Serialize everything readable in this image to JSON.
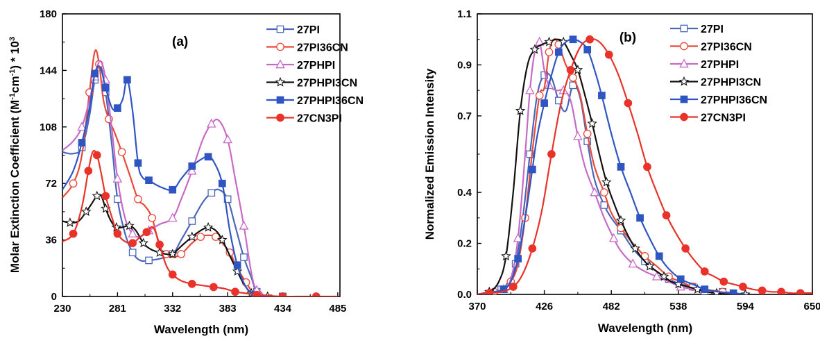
{
  "chart_data": [
    {
      "type": "line",
      "panel_label": "(a)",
      "xlabel": "Wavelength (nm)",
      "ylabel": "Molar Extinction Coefficient (M-1cm-1) * 103",
      "ylabel_parts": [
        "Molar Extinction Coefficient (M",
        "-1",
        "cm",
        "-1",
        ") * 10",
        "3"
      ],
      "xlim": [
        230,
        487
      ],
      "ylim": [
        0,
        180
      ],
      "xticks": [
        230,
        281,
        332,
        383,
        434,
        485
      ],
      "yticks": [
        0,
        36,
        72,
        108,
        144,
        180
      ],
      "legend_position": "top-right",
      "series": [
        {
          "name": "27PI",
          "color": "#4a66b8",
          "marker": "square-open",
          "x": [
            230,
            240,
            248,
            255,
            260,
            265,
            270,
            276,
            281,
            288,
            295,
            302,
            310,
            320,
            332,
            340,
            350,
            360,
            368,
            375,
            383,
            390,
            398,
            405,
            410,
            420,
            434
          ],
          "y": [
            92,
            91,
            95,
            115,
            138,
            147,
            130,
            95,
            62,
            40,
            28,
            23,
            23,
            24,
            27,
            36,
            48,
            60,
            66,
            68,
            62,
            45,
            25,
            12,
            3,
            0,
            0
          ]
        },
        {
          "name": "27PI36CN",
          "color": "#e84a3a",
          "marker": "circle-open",
          "x": [
            230,
            240,
            248,
            255,
            260,
            264,
            268,
            273,
            278,
            285,
            292,
            300,
            306,
            313,
            320,
            326,
            332,
            340,
            350,
            358,
            365,
            372,
            378,
            385,
            392,
            400,
            406,
            412,
            420
          ],
          "y": [
            63,
            72,
            90,
            130,
            156,
            148,
            125,
            113,
            105,
            92,
            78,
            62,
            58,
            50,
            32,
            27,
            25,
            27,
            34,
            38,
            39,
            38,
            34,
            28,
            18,
            9,
            3,
            1,
            0
          ]
        },
        {
          "name": "27PHPI",
          "color": "#c76ac7",
          "marker": "triangle-open",
          "x": [
            230,
            240,
            248,
            255,
            260,
            265,
            270,
            276,
            281,
            288,
            295,
            302,
            310,
            320,
            332,
            340,
            350,
            360,
            368,
            375,
            383,
            390,
            398,
            405,
            410,
            420
          ],
          "y": [
            93,
            99,
            108,
            125,
            140,
            150,
            138,
            105,
            75,
            50,
            40,
            38,
            42,
            46,
            50,
            62,
            80,
            100,
            110,
            112,
            100,
            75,
            45,
            15,
            4,
            0
          ]
        },
        {
          "name": "27PHPI3CN",
          "color": "#111111",
          "marker": "star-open",
          "x": [
            230,
            237,
            245,
            252,
            257,
            262,
            266,
            270,
            275,
            280,
            285,
            292,
            298,
            305,
            312,
            320,
            326,
            332,
            340,
            350,
            358,
            365,
            372,
            378,
            385,
            392,
            398,
            405,
            410,
            420
          ],
          "y": [
            48,
            47,
            48,
            54,
            59,
            64,
            64,
            56,
            48,
            44,
            44,
            45,
            42,
            34,
            30,
            28,
            27,
            27,
            32,
            38,
            42,
            44,
            42,
            36,
            26,
            16,
            8,
            2,
            0.5,
            0
          ]
        },
        {
          "name": "27PHPI36CN",
          "color": "#2e55c2",
          "marker": "square-filled",
          "x": [
            230,
            240,
            248,
            255,
            260,
            265,
            270,
            276,
            281,
            286,
            290,
            295,
            300,
            304,
            310,
            320,
            332,
            340,
            350,
            360,
            365,
            370,
            378,
            385,
            392,
            400,
            408,
            420,
            434
          ],
          "y": [
            68,
            80,
            98,
            120,
            142,
            146,
            133,
            120,
            120,
            126,
            138,
            118,
            85,
            76,
            74,
            70,
            68,
            75,
            83,
            88,
            89,
            86,
            72,
            42,
            20,
            6,
            1,
            0,
            0
          ]
        },
        {
          "name": "27CN3PI",
          "color": "#e8322a",
          "marker": "circle-filled",
          "x": [
            230,
            240,
            248,
            254,
            258,
            262,
            266,
            270,
            276,
            281,
            288,
            295,
            302,
            308,
            314,
            320,
            326,
            332,
            340,
            350,
            360,
            370,
            380,
            390,
            400,
            410,
            420,
            434,
            448,
            465,
            485
          ],
          "y": [
            35,
            40,
            57,
            80,
            92,
            90,
            78,
            64,
            50,
            40,
            35,
            34,
            38,
            41,
            44,
            33,
            20,
            14,
            10,
            8,
            7,
            6,
            5,
            3,
            2,
            1,
            0.5,
            0,
            0,
            0,
            0
          ]
        }
      ]
    },
    {
      "type": "line",
      "panel_label": "(b)",
      "xlabel": "Wavelength (nm)",
      "ylabel": "Normalized Emission Intensity",
      "xlim": [
        370,
        650
      ],
      "ylim": [
        0.0,
        1.1
      ],
      "xticks": [
        370,
        426,
        482,
        538,
        594,
        650
      ],
      "yticks": [
        0.0,
        0.2,
        0.4,
        0.7,
        0.9,
        1.1
      ],
      "legend_position": "top-right",
      "series": [
        {
          "name": "27PI",
          "color": "#4a66b8",
          "marker": "square-open",
          "x": [
            370,
            380,
            390,
            396,
            402,
            408,
            414,
            420,
            426,
            432,
            438,
            444,
            450,
            456,
            462,
            468,
            476,
            482,
            490,
            500,
            510,
            520,
            530,
            540,
            550,
            560,
            575,
            594
          ],
          "y": [
            0,
            0.01,
            0.02,
            0.05,
            0.12,
            0.3,
            0.55,
            0.78,
            0.86,
            0.85,
            0.76,
            0.72,
            0.82,
            0.77,
            0.6,
            0.45,
            0.35,
            0.3,
            0.25,
            0.18,
            0.13,
            0.09,
            0.06,
            0.04,
            0.03,
            0.02,
            0.01,
            0
          ]
        },
        {
          "name": "27PI36CN",
          "color": "#e84a3a",
          "marker": "circle-open",
          "x": [
            370,
            384,
            392,
            398,
            404,
            410,
            416,
            422,
            426,
            430,
            434,
            438,
            444,
            450,
            456,
            462,
            468,
            476,
            482,
            490,
            500,
            510,
            520,
            530,
            540,
            550,
            560,
            575,
            594
          ],
          "y": [
            0,
            0.01,
            0.02,
            0.05,
            0.12,
            0.3,
            0.56,
            0.78,
            0.81,
            0.95,
            1.0,
            0.98,
            0.9,
            0.85,
            0.78,
            0.63,
            0.5,
            0.4,
            0.32,
            0.26,
            0.2,
            0.15,
            0.11,
            0.07,
            0.05,
            0.03,
            0.02,
            0.01,
            0
          ]
        },
        {
          "name": "27PHPI",
          "color": "#c76ac7",
          "marker": "triangle-open",
          "x": [
            370,
            384,
            392,
            398,
            404,
            410,
            414,
            418,
            422,
            426,
            430,
            436,
            442,
            448,
            454,
            460,
            468,
            476,
            484,
            490,
            500,
            510,
            520,
            530,
            540,
            550,
            560,
            575,
            594
          ],
          "y": [
            0,
            0.01,
            0.02,
            0.06,
            0.22,
            0.55,
            0.8,
            0.95,
            0.99,
            0.88,
            0.82,
            0.8,
            0.8,
            0.76,
            0.62,
            0.5,
            0.4,
            0.3,
            0.22,
            0.17,
            0.12,
            0.09,
            0.07,
            0.05,
            0.03,
            0.02,
            0.01,
            0.005,
            0
          ]
        },
        {
          "name": "27PHPI3CN",
          "color": "#111111",
          "marker": "star-open",
          "x": [
            370,
            380,
            388,
            394,
            400,
            406,
            412,
            418,
            424,
            430,
            436,
            442,
            448,
            454,
            460,
            466,
            472,
            478,
            484,
            490,
            496,
            502,
            508,
            514,
            520,
            526,
            532,
            538,
            546,
            554,
            562,
            570,
            580,
            594
          ],
          "y": [
            0,
            0.01,
            0.05,
            0.15,
            0.4,
            0.72,
            0.9,
            0.96,
            0.98,
            0.99,
            1.0,
            0.99,
            0.94,
            0.88,
            0.78,
            0.67,
            0.55,
            0.44,
            0.36,
            0.29,
            0.23,
            0.18,
            0.14,
            0.11,
            0.09,
            0.07,
            0.05,
            0.04,
            0.03,
            0.02,
            0.01,
            0.005,
            0,
            0
          ]
        },
        {
          "name": "27PHPI36CN",
          "color": "#2e55c2",
          "marker": "square-filled",
          "x": [
            370,
            384,
            392,
            398,
            404,
            410,
            416,
            420,
            426,
            432,
            438,
            444,
            450,
            456,
            462,
            468,
            474,
            482,
            490,
            498,
            506,
            514,
            522,
            530,
            540,
            550,
            560,
            572,
            584,
            594
          ],
          "y": [
            0,
            0.01,
            0.02,
            0.05,
            0.14,
            0.3,
            0.49,
            0.62,
            0.75,
            0.86,
            0.95,
            0.99,
            1.0,
            0.99,
            0.96,
            0.88,
            0.78,
            0.63,
            0.5,
            0.4,
            0.3,
            0.22,
            0.15,
            0.1,
            0.06,
            0.04,
            0.02,
            0.01,
            0.005,
            0
          ]
        },
        {
          "name": "27CN3PI",
          "color": "#e8322a",
          "marker": "circle-filled",
          "x": [
            370,
            380,
            390,
            400,
            408,
            416,
            424,
            432,
            440,
            448,
            456,
            464,
            472,
            480,
            488,
            496,
            504,
            512,
            520,
            528,
            536,
            544,
            552,
            560,
            568,
            576,
            584,
            592,
            600,
            608,
            616,
            624,
            632,
            640,
            650
          ],
          "y": [
            0,
            0.005,
            0.01,
            0.03,
            0.08,
            0.18,
            0.33,
            0.55,
            0.75,
            0.88,
            0.97,
            1.0,
            0.99,
            0.94,
            0.86,
            0.75,
            0.63,
            0.5,
            0.4,
            0.31,
            0.24,
            0.18,
            0.13,
            0.09,
            0.07,
            0.05,
            0.04,
            0.03,
            0.02,
            0.015,
            0.01,
            0.01,
            0.005,
            0.005,
            0.005
          ]
        }
      ]
    }
  ]
}
